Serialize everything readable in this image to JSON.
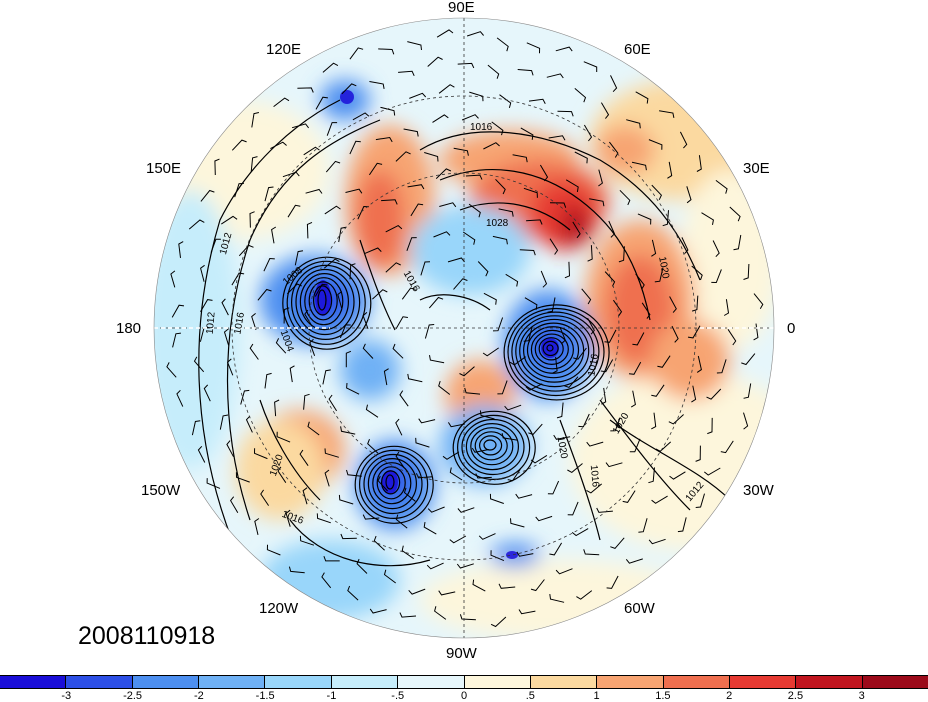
{
  "map": {
    "projection": "north-polar-stereographic",
    "longitude_labels": [
      {
        "id": "90e",
        "text": "90E"
      },
      {
        "id": "60e",
        "text": "60E"
      },
      {
        "id": "120e",
        "text": "120E"
      },
      {
        "id": "30e",
        "text": "30E"
      },
      {
        "id": "150e",
        "text": "150E"
      },
      {
        "id": "180",
        "text": "180"
      },
      {
        "id": "0",
        "text": "0"
      },
      {
        "id": "30w",
        "text": "30W"
      },
      {
        "id": "150w",
        "text": "150W"
      },
      {
        "id": "60w",
        "text": "60W"
      },
      {
        "id": "120w",
        "text": "120W"
      },
      {
        "id": "90w",
        "text": "90W"
      }
    ],
    "contour_labels": [
      "1016",
      "1028",
      "1020",
      "1012",
      "1008",
      "1016",
      "1004",
      "1012",
      "1016",
      "1020",
      "1016",
      "1020",
      "1016",
      "1012",
      "1016",
      "1020"
    ],
    "colors": {
      "neg3": "#1a0ed8",
      "neg25": "#2c4fe6",
      "neg2": "#4d8ff0",
      "neg15": "#6fb1f5",
      "neg1": "#99d6fa",
      "neg05": "#c6edfb",
      "pos05": "#fdf6dc",
      "pos1": "#fbd9a0",
      "pos15": "#f7a472",
      "pos2": "#ef6f4f",
      "pos25": "#e63a32",
      "pos3": "#b1081b"
    }
  },
  "date": "2008110918",
  "colorbar": {
    "ticks": [
      "-3",
      "-2.5",
      "-2",
      "-1.5",
      "-1",
      "-.5",
      "0",
      ".5",
      "1",
      "1.5",
      "2",
      "2.5",
      "3"
    ],
    "colors": [
      "#1a0ed8",
      "#2c4fe6",
      "#4d8ff0",
      "#6fb1f5",
      "#99d6fa",
      "#c6edfb",
      "#e6f6fb",
      "#fdf6dc",
      "#fbd9a0",
      "#f7a472",
      "#ef6f4f",
      "#e63a32",
      "#c1151f",
      "#9c0a1a"
    ]
  }
}
